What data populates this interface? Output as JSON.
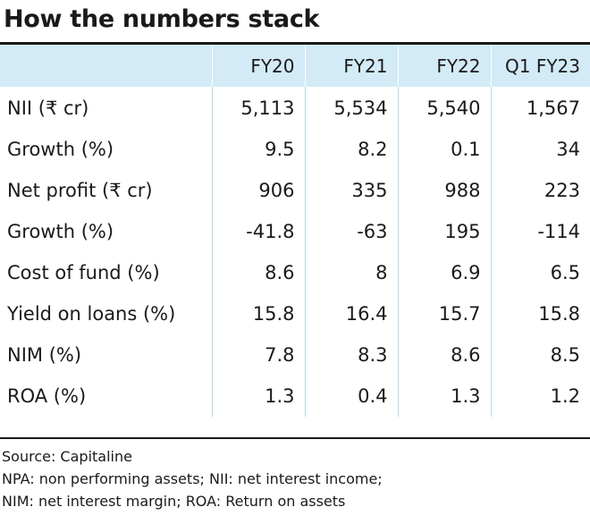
{
  "title": "How the numbers stack",
  "table": {
    "columns": [
      "",
      "FY20",
      "FY21",
      "FY22",
      "Q1 FY23"
    ],
    "rows": [
      {
        "label": "NII (₹ cr)",
        "values": [
          "5,113",
          "5,534",
          "5,540",
          "1,567"
        ]
      },
      {
        "label": "Growth (%)",
        "values": [
          "9.5",
          "8.2",
          "0.1",
          "34"
        ]
      },
      {
        "label": "Net profit  (₹ cr)",
        "values": [
          "906",
          "335",
          "988",
          "223"
        ]
      },
      {
        "label": "Growth (%)",
        "values": [
          "-41.8",
          "-63",
          "195",
          "-114"
        ]
      },
      {
        "label": "Cost of fund (%)",
        "values": [
          "8.6",
          "8",
          "6.9",
          "6.5"
        ]
      },
      {
        "label": "Yield on loans (%)",
        "values": [
          "15.8",
          "16.4",
          "15.7",
          "15.8"
        ]
      },
      {
        "label": "NIM (%)",
        "values": [
          "7.8",
          "8.3",
          "8.6",
          "8.5"
        ]
      },
      {
        "label": "ROA (%)",
        "values": [
          "1.3",
          "0.4",
          "1.3",
          "1.2"
        ]
      }
    ]
  },
  "notes": {
    "source": "Source: Capitaline",
    "line1": "NPA: non performing assets; NII: net interest income;",
    "line2": "NIM: net interest margin; ROA: Return on assets"
  },
  "colors": {
    "header_background": "#d3eaf7",
    "rule": "#1a1a1a",
    "grid": "#b8d6e8"
  }
}
